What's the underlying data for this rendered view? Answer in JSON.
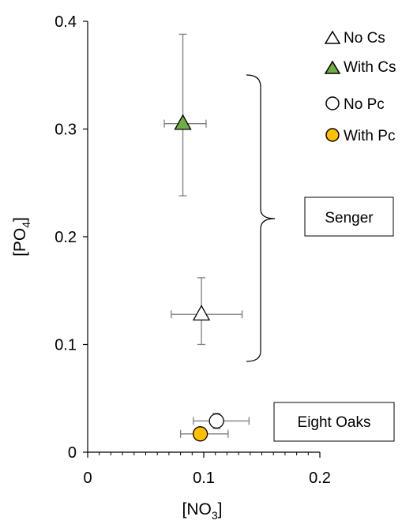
{
  "chart_data": {
    "type": "scatter",
    "xlabel": "[NO",
    "xlabel_sub": "3",
    "xlabel_close": "]",
    "ylabel": "[PO",
    "ylabel_sub": "4",
    "ylabel_close": "]",
    "xlim": [
      0,
      0.2
    ],
    "ylim": [
      0,
      0.4
    ],
    "x_ticks": [
      0,
      0.1,
      0.2
    ],
    "x_tick_labels": [
      "0",
      "0.1",
      "0.2"
    ],
    "y_ticks": [
      0,
      0.1,
      0.2,
      0.3,
      0.4
    ],
    "y_tick_labels": [
      "0",
      "0.1",
      "0.2",
      "0.3",
      "0.4"
    ],
    "grid": false,
    "legend_position": "top-right",
    "series": [
      {
        "name": "No Cs",
        "marker": "triangle",
        "fill": "#ffffff",
        "points": [
          {
            "x": 0.098,
            "y": 0.128,
            "xerr_low": 0.072,
            "xerr_high": 0.133,
            "yerr_low": 0.1,
            "yerr_high": 0.162
          }
        ]
      },
      {
        "name": "With Cs",
        "marker": "triangle",
        "fill": "#70ad47",
        "points": [
          {
            "x": 0.082,
            "y": 0.305,
            "xerr_low": 0.066,
            "xerr_high": 0.102,
            "yerr_low": 0.238,
            "yerr_high": 0.388
          }
        ]
      },
      {
        "name": "No Pc",
        "marker": "circle",
        "fill": "#ffffff",
        "points": [
          {
            "x": 0.111,
            "y": 0.029,
            "xerr_low": 0.091,
            "xerr_high": 0.139,
            "yerr_low": 0.022,
            "yerr_high": 0.036
          }
        ]
      },
      {
        "name": "With Pc",
        "marker": "circle",
        "fill": "#ffc000",
        "points": [
          {
            "x": 0.097,
            "y": 0.017,
            "xerr_low": 0.08,
            "xerr_high": 0.121,
            "yerr_low": 0.017,
            "yerr_high": 0.017
          }
        ]
      }
    ],
    "annotations": [
      {
        "label": "Senger",
        "kind": "brace-group",
        "y_range": [
          0.085,
          0.35
        ]
      },
      {
        "label": "Eight Oaks",
        "kind": "box"
      }
    ]
  }
}
